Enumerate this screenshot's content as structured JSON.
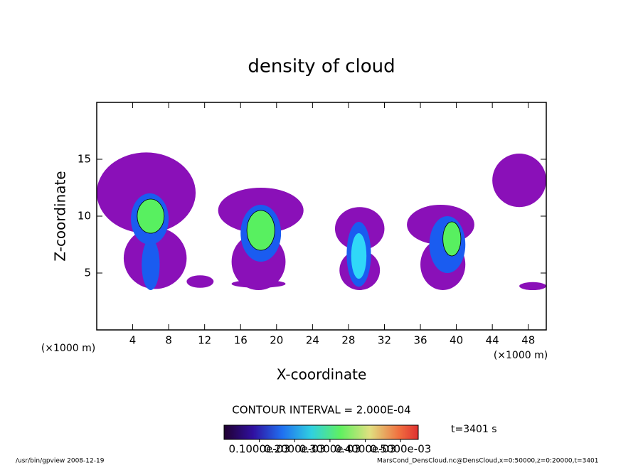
{
  "chart_data": {
    "type": "contour",
    "title": "density of cloud",
    "x_label": "X-coordinate",
    "y_label": "Z-coordinate",
    "x_unit": "(×1000 m)",
    "y_unit": "(×1000 m)",
    "xlim": [
      0,
      50
    ],
    "ylim": [
      0,
      20
    ],
    "xticks": [
      4,
      8,
      12,
      16,
      20,
      24,
      28,
      32,
      36,
      40,
      44,
      48
    ],
    "yticks": [
      5,
      10,
      15
    ],
    "contour_interval": "CONTOUR INTERVAL = 2.000E-04",
    "time_label": "t=3401 s",
    "levels": [
      {
        "value": 0.0001,
        "label": "0.1000e-03",
        "color": "#8a10b8"
      },
      {
        "value": 0.0002,
        "label": "0.2000e-03",
        "color": "#1a5cf0"
      },
      {
        "value": 0.0003,
        "label": "0.3000e-03",
        "color": "#30d8f8"
      },
      {
        "value": 0.0004,
        "label": "0.4000e-03",
        "color": "#58f060"
      },
      {
        "value": 0.0005,
        "label": "0.5000e-03",
        "color": "#f07830"
      }
    ],
    "regions": [
      {
        "level": 0,
        "x": [
          0,
          11
        ],
        "z": [
          8.5,
          15.6
        ]
      },
      {
        "level": 0,
        "x": [
          3,
          10
        ],
        "z": [
          3.6,
          9
        ]
      },
      {
        "level": 0,
        "x": [
          10,
          13
        ],
        "z": [
          3.7,
          4.8
        ]
      },
      {
        "level": 0,
        "x": [
          15,
          21
        ],
        "z": [
          3.7,
          4.4
        ]
      },
      {
        "level": 0,
        "x": [
          13.5,
          23
        ],
        "z": [
          8.5,
          12.5
        ]
      },
      {
        "level": 0,
        "x": [
          15,
          21
        ],
        "z": [
          3.5,
          8.5
        ]
      },
      {
        "level": 0,
        "x": [
          26.5,
          32
        ],
        "z": [
          7,
          10.8
        ]
      },
      {
        "level": 0,
        "x": [
          27,
          31.5
        ],
        "z": [
          3.5,
          7
        ]
      },
      {
        "level": 0,
        "x": [
          34.5,
          42
        ],
        "z": [
          7.5,
          11
        ]
      },
      {
        "level": 0,
        "x": [
          36,
          41
        ],
        "z": [
          3.5,
          8
        ]
      },
      {
        "level": 0,
        "x": [
          44,
          50
        ],
        "z": [
          10.8,
          15.5
        ]
      },
      {
        "level": 0,
        "x": [
          47,
          50
        ],
        "z": [
          3.5,
          4.2
        ]
      },
      {
        "level": 1,
        "x": [
          3.8,
          8
        ],
        "z": [
          7.5,
          12
        ]
      },
      {
        "level": 1,
        "x": [
          5,
          7
        ],
        "z": [
          3.5,
          8
        ]
      },
      {
        "level": 1,
        "x": [
          16,
          20.5
        ],
        "z": [
          6,
          11
        ]
      },
      {
        "level": 1,
        "x": [
          27.8,
          30.5
        ],
        "z": [
          3.8,
          9.5
        ]
      },
      {
        "level": 1,
        "x": [
          37,
          41
        ],
        "z": [
          5,
          10
        ]
      },
      {
        "level": 2,
        "x": [
          28.3,
          30
        ],
        "z": [
          4.5,
          8.5
        ]
      },
      {
        "level": 3,
        "x": [
          4.5,
          7.5
        ],
        "z": [
          8.5,
          11.5
        ]
      },
      {
        "level": 3,
        "x": [
          16.7,
          19.8
        ],
        "z": [
          7,
          10.5
        ]
      },
      {
        "level": 3,
        "x": [
          38.5,
          40.5
        ],
        "z": [
          6.5,
          9.5
        ]
      }
    ]
  },
  "footer_left": "/usr/bin/gpview   2008-12-19",
  "footer_right": "MarsCond_DensCloud.nc@DensCloud,x=0:50000,z=0:20000,t=3401"
}
